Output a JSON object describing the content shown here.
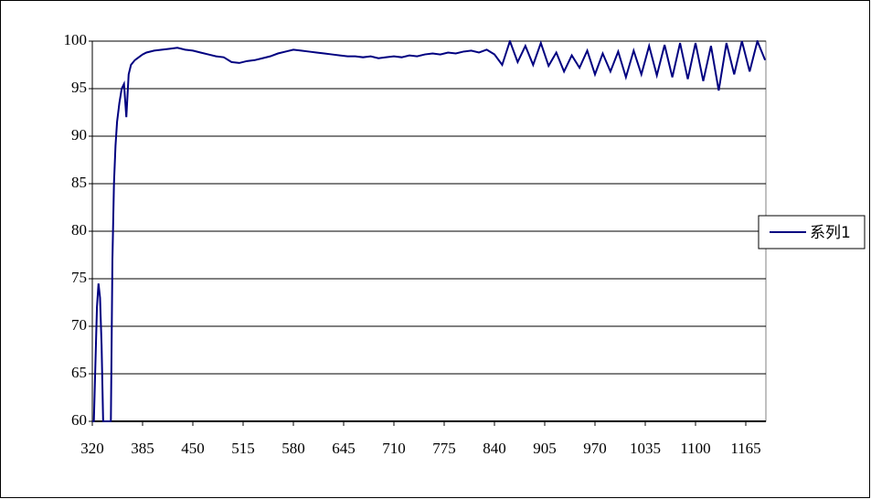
{
  "chart_data": {
    "type": "line",
    "x": [
      320,
      322,
      324,
      326,
      328,
      330,
      332,
      334,
      336,
      340,
      344,
      346,
      348,
      350,
      352,
      355,
      358,
      361,
      364,
      367,
      370,
      375,
      380,
      385,
      390,
      400,
      410,
      420,
      430,
      440,
      450,
      460,
      470,
      480,
      490,
      500,
      510,
      520,
      530,
      540,
      550,
      560,
      570,
      580,
      590,
      600,
      610,
      620,
      630,
      640,
      650,
      660,
      670,
      680,
      690,
      700,
      710,
      720,
      730,
      740,
      750,
      760,
      770,
      780,
      790,
      800,
      810,
      820,
      830,
      840,
      850,
      860,
      870,
      880,
      890,
      900,
      910,
      920,
      930,
      940,
      950,
      960,
      970,
      980,
      990,
      1000,
      1010,
      1020,
      1030,
      1040,
      1050,
      1060,
      1070,
      1080,
      1090,
      1100,
      1110,
      1120,
      1130,
      1140,
      1150,
      1160,
      1170,
      1180,
      1190
    ],
    "series": [
      {
        "name": "系列1",
        "color": "#000080",
        "values": [
          60,
          60,
          66,
          72,
          74.5,
          73,
          68,
          60,
          60,
          60,
          60,
          77,
          85,
          89,
          91.5,
          93.5,
          95,
          95.5,
          92,
          96.5,
          97.5,
          98,
          98.3,
          98.6,
          98.8,
          99,
          99.1,
          99.2,
          99.3,
          99.1,
          99,
          98.8,
          98.6,
          98.4,
          98.3,
          97.8,
          97.7,
          97.9,
          98,
          98.2,
          98.4,
          98.7,
          98.9,
          99.1,
          99,
          98.9,
          98.8,
          98.7,
          98.6,
          98.5,
          98.4,
          98.4,
          98.3,
          98.4,
          98.2,
          98.3,
          98.4,
          98.3,
          98.5,
          98.4,
          98.6,
          98.7,
          98.6,
          98.8,
          98.7,
          98.9,
          99,
          98.8,
          99.1,
          98.6,
          97.5,
          100,
          97.8,
          99.5,
          97.5,
          99.8,
          97.4,
          98.8,
          96.8,
          98.5,
          97.2,
          99,
          96.5,
          98.7,
          96.8,
          98.9,
          96.2,
          99,
          96.5,
          99.5,
          96.4,
          99.6,
          96.2,
          99.8,
          96,
          99.8,
          95.8,
          99.5,
          94.8,
          99.8,
          96.5,
          100,
          96.8,
          100,
          98
        ]
      }
    ],
    "xlim": [
      320,
      1191
    ],
    "xticks": [
      320,
      385,
      450,
      515,
      580,
      645,
      710,
      775,
      840,
      905,
      970,
      1035,
      1100,
      1165
    ],
    "ylim": [
      60,
      100
    ],
    "yticks": [
      60,
      65,
      70,
      75,
      80,
      85,
      90,
      95,
      100
    ],
    "grid": true,
    "legend": "right"
  }
}
